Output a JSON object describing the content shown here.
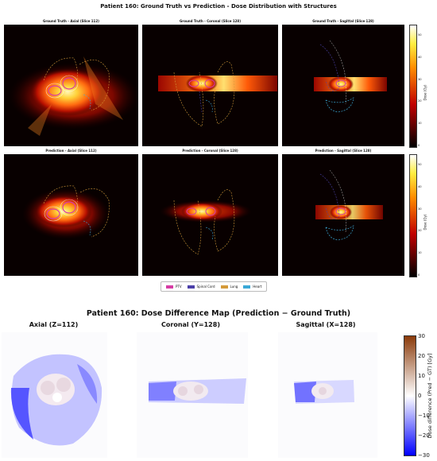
{
  "figure1": {
    "suptitle": "Patient 160: Ground Truth vs Prediction - Dose Distribution with Structures",
    "row1": [
      {
        "title": "Ground Truth - Axial (Slice 112)"
      },
      {
        "title": "Ground Truth - Coronal (Slice 128)"
      },
      {
        "title": "Ground Truth - Sagittal (Slice 128)"
      }
    ],
    "row2": [
      {
        "title": "Prediction - Axial (Slice 112)"
      },
      {
        "title": "Prediction - Coronal (Slice 128)"
      },
      {
        "title": "Prediction - Sagittal (Slice 128)"
      }
    ],
    "colorbar_label": "Dose (Gy)",
    "colorbar_ticks": [
      "0",
      "10",
      "20",
      "30",
      "40",
      "50"
    ],
    "legend": [
      {
        "label": "PTV",
        "color": "#d63ca4"
      },
      {
        "label": "Spinal Cord",
        "color": "#4b3fa8"
      },
      {
        "label": "Lung",
        "color": "#d49a3a"
      },
      {
        "label": "Heart",
        "color": "#3aa8d6"
      }
    ]
  },
  "figure2": {
    "title": "Patient 160: Dose Difference Map (Prediction − Ground Truth)",
    "panels": [
      {
        "title": "Axial (Z=112)"
      },
      {
        "title": "Coronal (Y=128)"
      },
      {
        "title": "Sagittal (X=128)"
      }
    ],
    "colorbar_label": "Dose difference (Pred − GT) [Gy]",
    "colorbar_ticks": [
      "30",
      "20",
      "10",
      "0",
      "−10",
      "−20",
      "−30"
    ]
  },
  "chart_data": [
    {
      "type": "heatmap",
      "title": "Patient 160: Ground Truth vs Prediction - Dose Distribution with Structures",
      "colormap": "hot",
      "clim": [
        0,
        55
      ],
      "colorbar_label": "Dose (Gy)",
      "legend": [
        "PTV",
        "Spinal Cord",
        "Lung",
        "Heart"
      ]
    },
    {
      "type": "heatmap",
      "title": "Patient 160: Dose Difference Map (Prediction − Ground Truth)",
      "colormap": "bwr",
      "clim": [
        -30,
        30
      ],
      "colorbar_label": "Dose difference (Pred − GT) [Gy]"
    }
  ]
}
